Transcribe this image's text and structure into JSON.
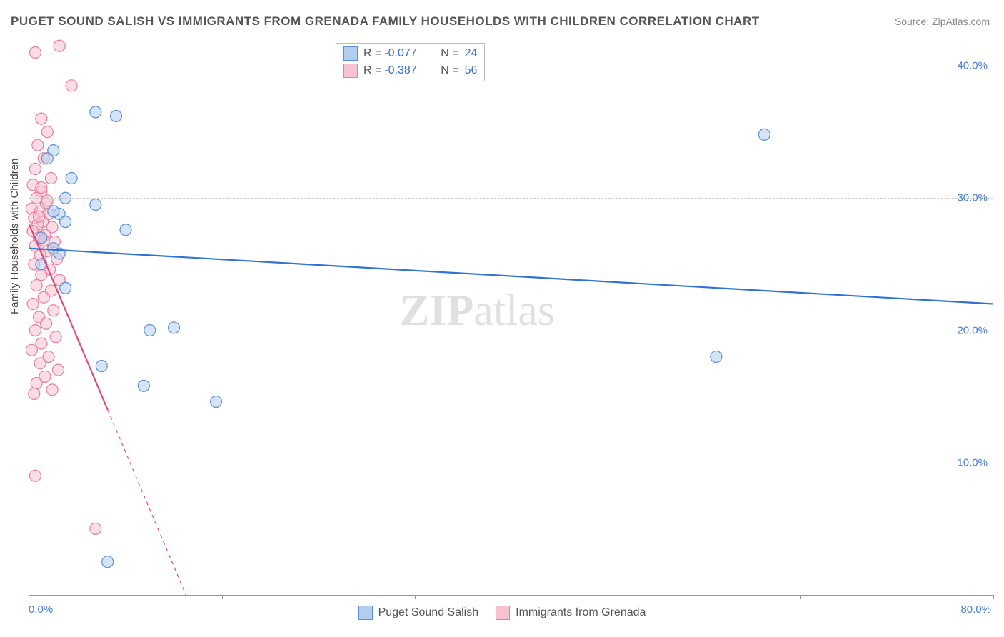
{
  "title": "PUGET SOUND SALISH VS IMMIGRANTS FROM GRENADA FAMILY HOUSEHOLDS WITH CHILDREN CORRELATION CHART",
  "source": "Source: ZipAtlas.com",
  "y_axis_label": "Family Households with Children",
  "watermark": {
    "bold": "ZIP",
    "rest": "atlas"
  },
  "colors": {
    "blue_fill": "#b3cdf0",
    "blue_stroke": "#5a8fd6",
    "blue_line": "#2e74d0",
    "pink_fill": "#f8c2d0",
    "pink_stroke": "#e97ca0",
    "pink_line": "#e14b7a",
    "grid": "#cccccc",
    "axis_text": "#4a7fd4",
    "title_text": "#555555"
  },
  "chart": {
    "type": "scatter-with-regression",
    "xlim": [
      0,
      80
    ],
    "ylim": [
      0,
      42
    ],
    "y_ticks": [
      10,
      20,
      30,
      40
    ],
    "y_tick_labels": [
      "10.0%",
      "20.0%",
      "30.0%",
      "40.0%"
    ],
    "x_ticks": [
      0,
      16,
      32,
      48,
      64,
      80
    ],
    "x_start_label": "0.0%",
    "x_end_label": "80.0%",
    "marker_radius": 8,
    "marker_opacity": 0.55,
    "line_width": 2.2
  },
  "legend_top": [
    {
      "series": "blue",
      "r": "-0.077",
      "n": "24"
    },
    {
      "series": "pink",
      "r": "-0.387",
      "n": "56"
    }
  ],
  "legend_bottom": [
    {
      "series": "blue",
      "label": "Puget Sound Salish"
    },
    {
      "series": "pink",
      "label": "Immigrants from Grenada"
    }
  ],
  "series": {
    "blue": {
      "regression": {
        "x1": 0,
        "y1": 26.2,
        "x2": 80,
        "y2": 22.0,
        "solid_to_x": 80
      },
      "points": [
        [
          5.5,
          36.5
        ],
        [
          7.2,
          36.2
        ],
        [
          2.0,
          33.6
        ],
        [
          3.5,
          31.5
        ],
        [
          5.5,
          29.5
        ],
        [
          2.5,
          28.8
        ],
        [
          3.0,
          28.2
        ],
        [
          8.0,
          27.6
        ],
        [
          2.0,
          26.2
        ],
        [
          1.0,
          25.0
        ],
        [
          3.0,
          23.2
        ],
        [
          10.0,
          20.0
        ],
        [
          12.0,
          20.2
        ],
        [
          6.0,
          17.3
        ],
        [
          9.5,
          15.8
        ],
        [
          15.5,
          14.6
        ],
        [
          6.5,
          2.5
        ],
        [
          61.0,
          34.8
        ],
        [
          57.0,
          18.0
        ],
        [
          2.0,
          29.0
        ],
        [
          1.5,
          33.0
        ],
        [
          3.0,
          30.0
        ],
        [
          1.0,
          27.0
        ],
        [
          2.5,
          25.8
        ]
      ]
    },
    "pink": {
      "regression": {
        "x1": 0,
        "y1": 28.0,
        "x2": 13.0,
        "y2": 0,
        "solid_to_x": 6.5
      },
      "points": [
        [
          2.5,
          41.5
        ],
        [
          0.5,
          41.0
        ],
        [
          3.5,
          38.5
        ],
        [
          1.0,
          36.0
        ],
        [
          1.5,
          35.0
        ],
        [
          0.7,
          34.0
        ],
        [
          1.2,
          33.0
        ],
        [
          0.5,
          32.2
        ],
        [
          1.8,
          31.5
        ],
        [
          0.3,
          31.0
        ],
        [
          1.0,
          30.5
        ],
        [
          0.6,
          30.0
        ],
        [
          1.4,
          29.6
        ],
        [
          0.2,
          29.2
        ],
        [
          0.9,
          29.0
        ],
        [
          1.6,
          28.8
        ],
        [
          0.4,
          28.5
        ],
        [
          1.1,
          28.2
        ],
        [
          0.7,
          28.0
        ],
        [
          1.9,
          27.8
        ],
        [
          0.3,
          27.5
        ],
        [
          1.3,
          27.2
        ],
        [
          0.8,
          27.0
        ],
        [
          2.1,
          26.7
        ],
        [
          0.5,
          26.4
        ],
        [
          1.5,
          26.0
        ],
        [
          0.9,
          25.7
        ],
        [
          2.3,
          25.4
        ],
        [
          0.4,
          25.0
        ],
        [
          1.7,
          24.6
        ],
        [
          1.0,
          24.2
        ],
        [
          2.5,
          23.8
        ],
        [
          0.6,
          23.4
        ],
        [
          1.8,
          23.0
        ],
        [
          1.2,
          22.5
        ],
        [
          0.3,
          22.0
        ],
        [
          2.0,
          21.5
        ],
        [
          0.8,
          21.0
        ],
        [
          1.4,
          20.5
        ],
        [
          0.5,
          20.0
        ],
        [
          2.2,
          19.5
        ],
        [
          1.0,
          19.0
        ],
        [
          0.2,
          18.5
        ],
        [
          1.6,
          18.0
        ],
        [
          0.9,
          17.5
        ],
        [
          2.4,
          17.0
        ],
        [
          1.3,
          16.5
        ],
        [
          0.6,
          16.0
        ],
        [
          1.9,
          15.5
        ],
        [
          0.4,
          15.2
        ],
        [
          0.5,
          9.0
        ],
        [
          5.5,
          5.0
        ],
        [
          1.0,
          30.8
        ],
        [
          1.5,
          29.8
        ],
        [
          0.8,
          28.6
        ],
        [
          1.2,
          26.8
        ]
      ]
    }
  }
}
